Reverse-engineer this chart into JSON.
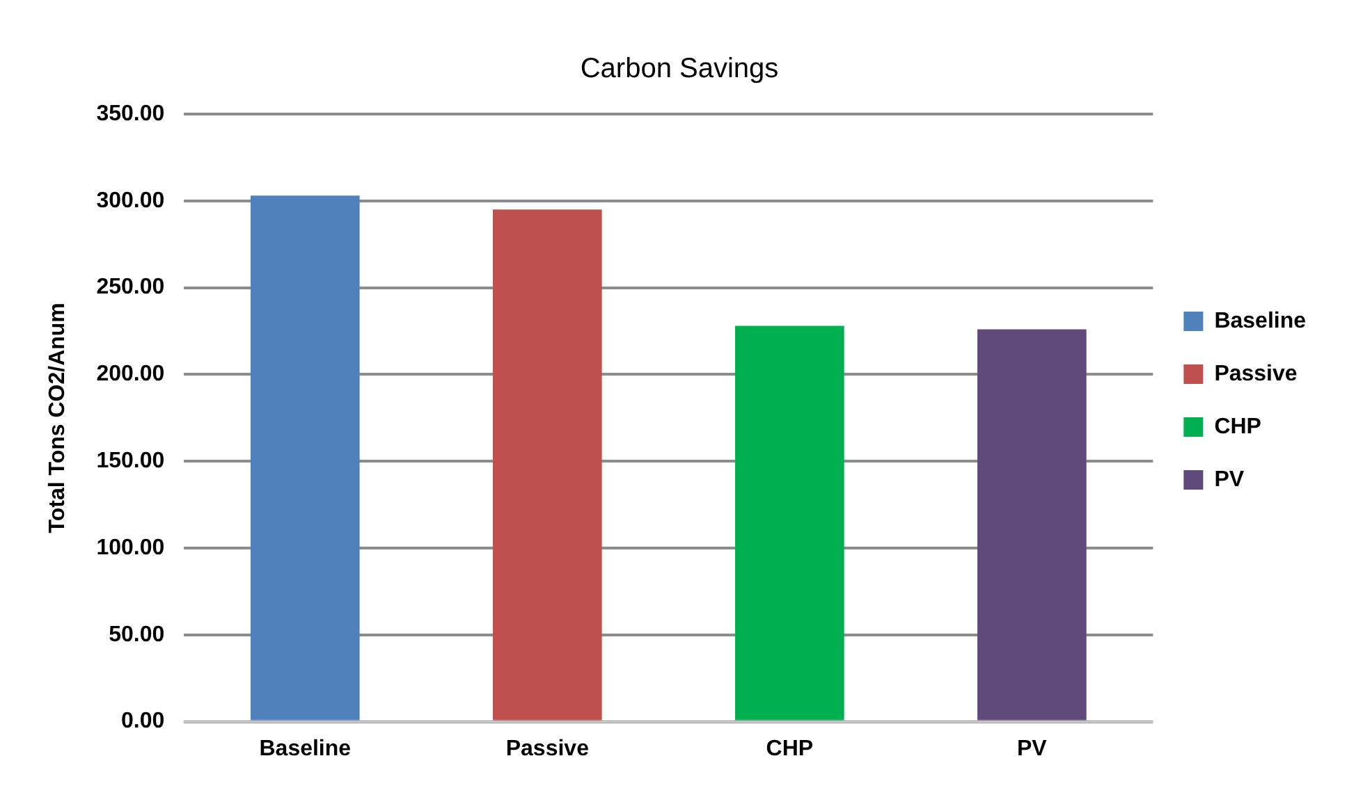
{
  "chart_data": {
    "type": "bar",
    "title": "Carbon Savings",
    "ylabel": "Total Tons CO2/Anum",
    "categories": [
      "Baseline",
      "Passive",
      "CHP",
      "PV"
    ],
    "series": [
      {
        "name": "Baseline",
        "color": "#4f81bd",
        "values": [
          303,
          null,
          null,
          null
        ]
      },
      {
        "name": "Passive",
        "color": "#c0504d",
        "values": [
          null,
          295,
          null,
          null
        ]
      },
      {
        "name": "CHP",
        "color": "#00b050",
        "values": [
          null,
          null,
          228,
          null
        ]
      },
      {
        "name": "PV",
        "color": "#604a7b",
        "values": [
          null,
          null,
          null,
          226
        ]
      }
    ],
    "ylim": [
      0,
      350
    ],
    "yticks": [
      {
        "value": 0,
        "label": "0.00"
      },
      {
        "value": 50,
        "label": "50.00"
      },
      {
        "value": 100,
        "label": "100.00"
      },
      {
        "value": 150,
        "label": "150.00"
      },
      {
        "value": 200,
        "label": "200.00"
      },
      {
        "value": 250,
        "label": "250.00"
      },
      {
        "value": 300,
        "label": "300.00"
      },
      {
        "value": 350,
        "label": "350.00"
      }
    ],
    "grid": "y",
    "legend": "right"
  }
}
